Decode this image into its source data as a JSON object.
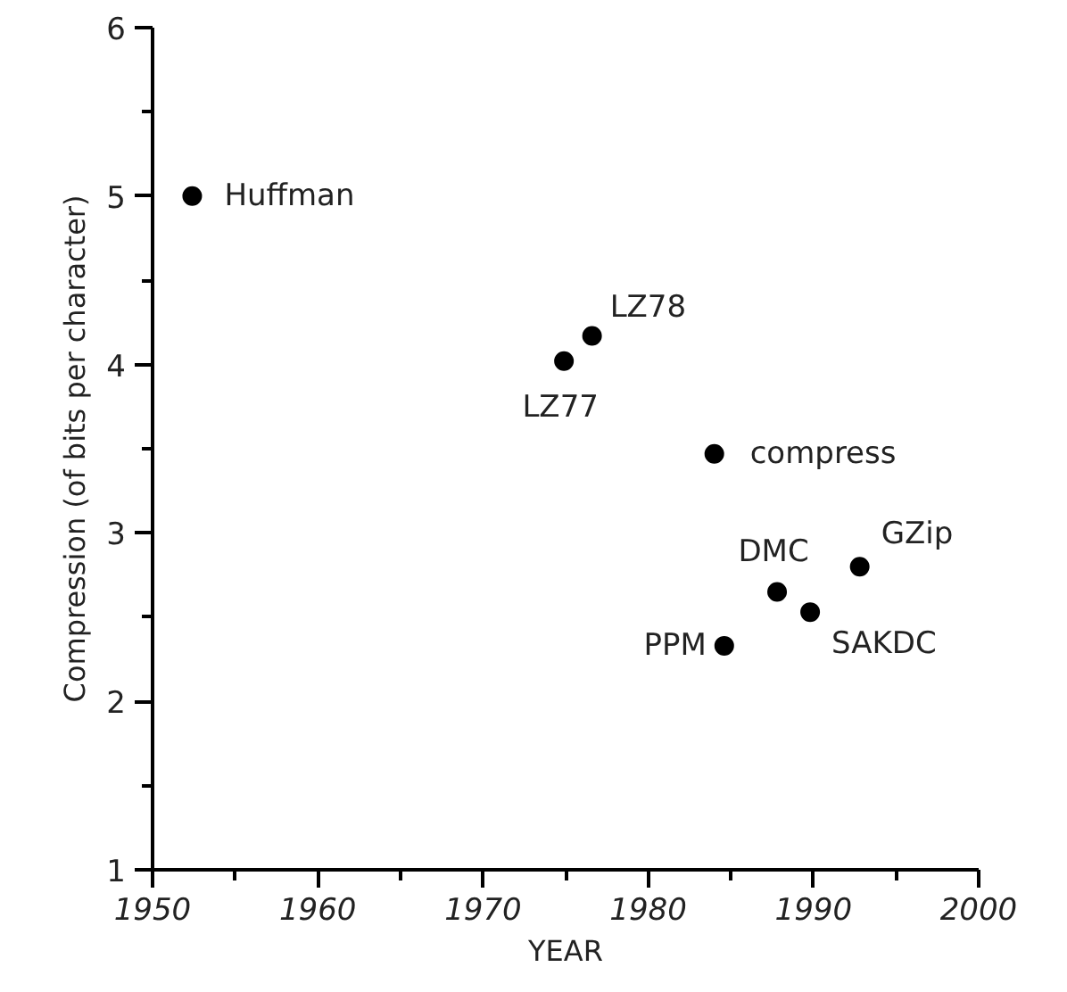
{
  "chart_data": {
    "type": "scatter",
    "xlabel": "YEAR",
    "ylabel": "Compression (of bits per character)",
    "x": [
      1952.4,
      1974.9,
      1976.6,
      1984.0,
      1987.8,
      1992.8,
      1989.8,
      1984.6
    ],
    "values": [
      5.0,
      4.02,
      4.17,
      3.47,
      2.65,
      2.8,
      2.53,
      2.33
    ],
    "color": "#000000",
    "marker": "circle",
    "grid": false,
    "xlim": [
      1950,
      2000
    ],
    "ylim": [
      1,
      6
    ],
    "xticks": [
      1950,
      {
        "value": 1955,
        "label": null
      },
      1960,
      {
        "value": 1965,
        "label": null
      },
      1970,
      {
        "value": 1975,
        "label": null
      },
      1980,
      {
        "value": 1985,
        "label": null
      },
      1990,
      {
        "value": 1995,
        "label": null
      },
      2000
    ],
    "yticks": [
      1,
      {
        "value": 1.5,
        "label": null
      },
      2,
      {
        "value": 2.5,
        "label": null
      },
      3,
      {
        "value": 3.5,
        "label": null
      },
      4,
      {
        "value": 4.5,
        "label": null
      },
      5,
      {
        "value": 5.5,
        "label": null
      },
      6
    ],
    "annotations": [
      {
        "text": "Huffman",
        "x": 1952.4,
        "y": 5.0
      },
      {
        "text": "LZ77",
        "x": 1974.9,
        "y": 4.02
      },
      {
        "text": "LZ78",
        "x": 1976.6,
        "y": 4.17
      },
      {
        "text": "compress",
        "x": 1984.0,
        "y": 3.47
      },
      {
        "text": "DMC",
        "x": 1987.8,
        "y": 2.65
      },
      {
        "text": "GZip",
        "x": 1992.8,
        "y": 2.8
      },
      {
        "text": "SAKDC",
        "x": 1989.8,
        "y": 2.53
      },
      {
        "text": "PPM",
        "x": 1984.6,
        "y": 2.33
      }
    ]
  }
}
